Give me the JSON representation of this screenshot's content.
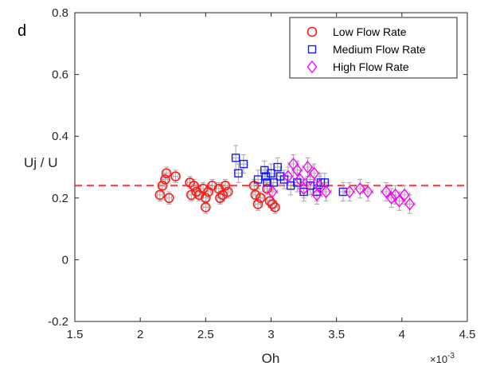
{
  "colors": {
    "low": "#ff1a1a",
    "medium": "#1a1aff",
    "high": "#ff00ff",
    "reference": "#ff3333",
    "errorbar": "#a6a6a6",
    "axis": "#262626"
  },
  "panel_label": "d",
  "chart_data": {
    "type": "scatter",
    "title": "",
    "xlabel": "Oh",
    "ylabel": "Uj / U",
    "x_multiplier_label": "×10",
    "x_multiplier_exponent": "-3",
    "xlim": [
      1.5,
      4.5
    ],
    "ylim": [
      -0.2,
      0.8
    ],
    "x_ticks": [
      1.5,
      2,
      2.5,
      3,
      3.5,
      4,
      4.5
    ],
    "x_tick_labels": [
      "1.5",
      "2",
      "2.5",
      "3",
      "3.5",
      "4",
      "4.5"
    ],
    "y_ticks": [
      -0.2,
      0,
      0.2,
      0.4,
      0.6,
      0.8
    ],
    "y_tick_labels": [
      "-0.2",
      "0",
      "0.2",
      "0.4",
      "0.6",
      "0.8"
    ],
    "grid": false,
    "legend_position": "top-right",
    "reference_line": {
      "y": 0.24,
      "style": "dashed"
    },
    "series": [
      {
        "name": "Low Flow Rate",
        "marker": "circle",
        "color_key": "low",
        "points": [
          [
            2.15,
            0.21,
            0.02,
            0.02
          ],
          [
            2.17,
            0.24,
            0.02,
            0.02
          ],
          [
            2.19,
            0.26,
            0.02,
            0.02
          ],
          [
            2.2,
            0.28,
            0.02,
            0.02
          ],
          [
            2.22,
            0.2,
            0.02,
            0.02
          ],
          [
            2.27,
            0.27,
            0.02,
            0.02
          ],
          [
            2.38,
            0.25,
            0.02,
            0.02
          ],
          [
            2.39,
            0.21,
            0.02,
            0.02
          ],
          [
            2.41,
            0.24,
            0.02,
            0.02
          ],
          [
            2.43,
            0.22,
            0.02,
            0.02
          ],
          [
            2.45,
            0.21,
            0.02,
            0.02
          ],
          [
            2.48,
            0.23,
            0.02,
            0.02
          ],
          [
            2.5,
            0.2,
            0.02,
            0.02
          ],
          [
            2.5,
            0.17,
            0.02,
            0.02
          ],
          [
            2.52,
            0.22,
            0.02,
            0.02
          ],
          [
            2.55,
            0.24,
            0.02,
            0.02
          ],
          [
            2.6,
            0.23,
            0.02,
            0.02
          ],
          [
            2.61,
            0.2,
            0.02,
            0.02
          ],
          [
            2.63,
            0.21,
            0.02,
            0.02
          ],
          [
            2.65,
            0.24,
            0.02,
            0.02
          ],
          [
            2.67,
            0.22,
            0.02,
            0.02
          ],
          [
            2.87,
            0.24,
            0.02,
            0.02
          ],
          [
            2.88,
            0.21,
            0.02,
            0.02
          ],
          [
            2.9,
            0.18,
            0.02,
            0.02
          ],
          [
            2.92,
            0.2,
            0.02,
            0.02
          ],
          [
            2.97,
            0.23,
            0.02,
            0.02
          ],
          [
            2.99,
            0.19,
            0.02,
            0.02
          ],
          [
            3.01,
            0.18,
            0.02,
            0.02
          ],
          [
            3.03,
            0.17,
            0.02,
            0.02
          ]
        ]
      },
      {
        "name": "Medium Flow Rate",
        "marker": "square",
        "color_key": "medium",
        "points": [
          [
            2.73,
            0.33,
            0.03,
            0.04
          ],
          [
            2.75,
            0.28,
            0.03,
            0.03
          ],
          [
            2.79,
            0.31,
            0.03,
            0.03
          ],
          [
            2.9,
            0.26,
            0.03,
            0.03
          ],
          [
            2.95,
            0.29,
            0.03,
            0.03
          ],
          [
            2.96,
            0.27,
            0.03,
            0.03
          ],
          [
            2.97,
            0.25,
            0.03,
            0.03
          ],
          [
            3.0,
            0.28,
            0.03,
            0.03
          ],
          [
            3.02,
            0.25,
            0.03,
            0.03
          ],
          [
            3.05,
            0.3,
            0.03,
            0.03
          ],
          [
            3.07,
            0.27,
            0.03,
            0.03
          ],
          [
            3.1,
            0.26,
            0.03,
            0.03
          ],
          [
            3.15,
            0.24,
            0.03,
            0.03
          ],
          [
            3.2,
            0.25,
            0.03,
            0.03
          ],
          [
            3.25,
            0.22,
            0.03,
            0.03
          ],
          [
            3.3,
            0.24,
            0.03,
            0.03
          ],
          [
            3.35,
            0.22,
            0.03,
            0.03
          ],
          [
            3.38,
            0.25,
            0.03,
            0.03
          ],
          [
            3.41,
            0.25,
            0.03,
            0.03
          ],
          [
            3.55,
            0.22,
            0.03,
            0.03
          ]
        ]
      },
      {
        "name": "High Flow Rate",
        "marker": "diamond",
        "color_key": "high",
        "points": [
          [
            3.01,
            0.22,
            0.04,
            0.03
          ],
          [
            3.13,
            0.27,
            0.04,
            0.03
          ],
          [
            3.17,
            0.31,
            0.04,
            0.03
          ],
          [
            3.2,
            0.29,
            0.04,
            0.03
          ],
          [
            3.22,
            0.26,
            0.04,
            0.03
          ],
          [
            3.25,
            0.23,
            0.04,
            0.03
          ],
          [
            3.28,
            0.3,
            0.04,
            0.03
          ],
          [
            3.3,
            0.26,
            0.04,
            0.03
          ],
          [
            3.33,
            0.28,
            0.04,
            0.03
          ],
          [
            3.35,
            0.21,
            0.04,
            0.03
          ],
          [
            3.37,
            0.24,
            0.04,
            0.03
          ],
          [
            3.42,
            0.22,
            0.04,
            0.03
          ],
          [
            3.6,
            0.22,
            0.04,
            0.03
          ],
          [
            3.68,
            0.23,
            0.04,
            0.03
          ],
          [
            3.74,
            0.22,
            0.04,
            0.03
          ],
          [
            3.88,
            0.22,
            0.04,
            0.03
          ],
          [
            3.92,
            0.2,
            0.04,
            0.03
          ],
          [
            3.95,
            0.21,
            0.04,
            0.03
          ],
          [
            3.98,
            0.19,
            0.04,
            0.03
          ],
          [
            4.02,
            0.21,
            0.04,
            0.03
          ],
          [
            4.06,
            0.18,
            0.04,
            0.03
          ]
        ]
      }
    ]
  }
}
